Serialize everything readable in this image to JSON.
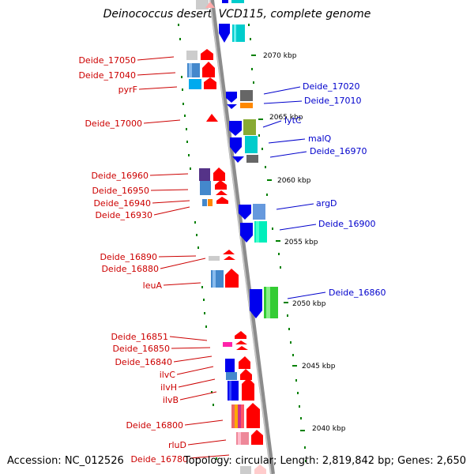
{
  "title": "Deinococcus deserti VCD115, complete genome",
  "accession": "Accession: NC_012526",
  "topology": "Topology: circular; Length: 2,819,842 bp; Genes: 2,650",
  "ticks": [
    "2070 kbp",
    "2065 kbp",
    "2060 kbp",
    "2055 kbp",
    "2050 kbp",
    "2045 kbp",
    "2040 kbp"
  ],
  "left_labels": [
    "Deide_17050",
    "Deide_17040",
    "pyrF",
    "Deide_17000",
    "Deide_16960",
    "Deide_16950",
    "Deide_16940",
    "Deide_16930",
    "Deide_16890",
    "Deide_16880",
    "leuA",
    "Deide_16851",
    "Deide_16850",
    "Deide_16840",
    "ilvC",
    "ilvH",
    "ilvB",
    "Deide_16800",
    "rluD",
    "Deide_16780"
  ],
  "right_labels": [
    "Deide_17020",
    "Deide_17010",
    "lytC",
    "malQ",
    "Deide_16970",
    "argD",
    "Deide_16900",
    "Deide_16860"
  ],
  "colors": {
    "plus_strand": "#ff0000",
    "minus_strand": "#0000ee",
    "backbone": "#8c8c8c",
    "left_label": "#cc0000",
    "right_label": "#0000cc",
    "tick_mark": "#008000"
  }
}
